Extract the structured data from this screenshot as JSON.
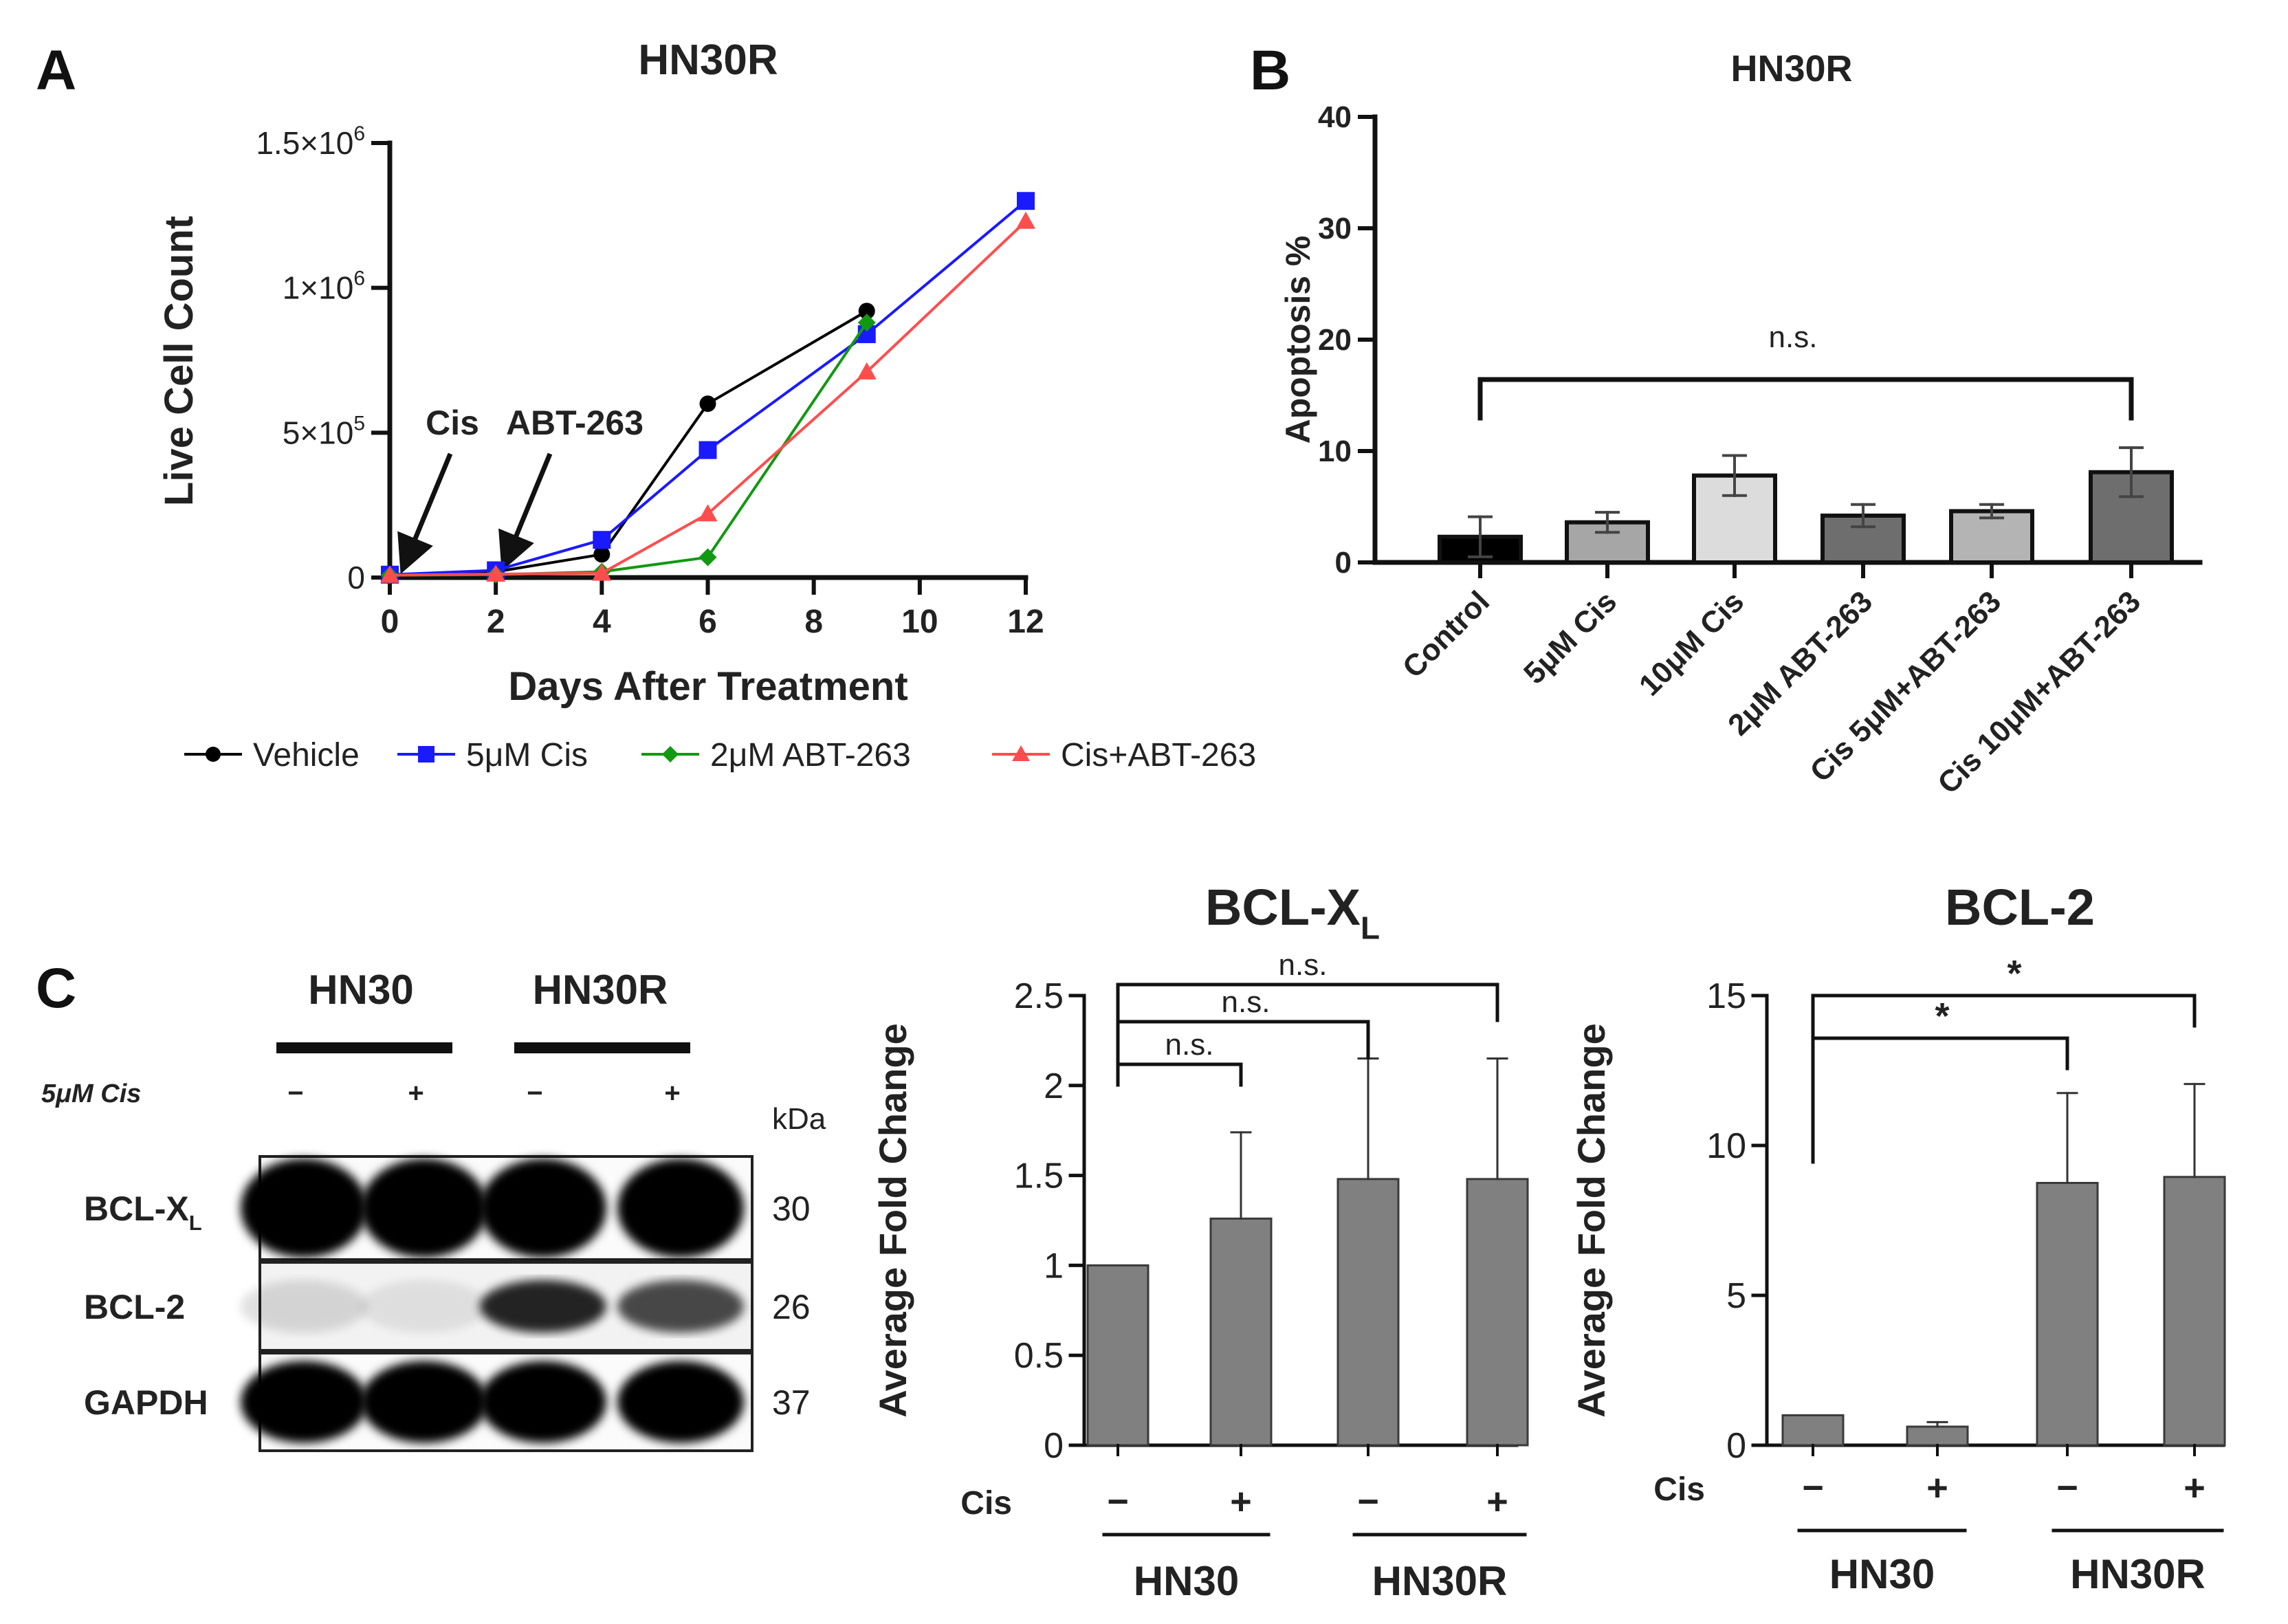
{
  "panel_letters": [
    "A",
    "B",
    "C"
  ],
  "panelA": {
    "title": "HN30R",
    "ylabel": "Live Cell Count",
    "xlabel": "Days After Treatment",
    "ytick_labels": [
      "0",
      "5×10",
      "1×10",
      "1.5×10"
    ],
    "ytick_exponents": [
      "",
      "5",
      "6",
      "6"
    ],
    "xtick_labels": [
      "0",
      "2",
      "4",
      "6",
      "8",
      "10",
      "12"
    ],
    "annotations": [
      "Cis",
      "ABT-263"
    ],
    "legend": [
      "Vehicle",
      "5μM Cis",
      "2μM ABT-263",
      "Cis+ABT-263"
    ],
    "colors": [
      "#000000",
      "#1a1aff",
      "#119911",
      "#ff4d4d"
    ]
  },
  "panelB": {
    "title": "HN30R",
    "ylabel": "Apoptosis %",
    "ytick_labels": [
      "0",
      "10",
      "20",
      "30",
      "40"
    ],
    "categories": [
      "Control",
      "5μM Cis",
      "10μM Cis",
      "2μM ABT-263",
      "Cis 5μM+ABT-263",
      "Cis 10μM+ABT-263"
    ],
    "significance": "n.s.",
    "bar_colors": [
      "#000000",
      "#a6a6a6",
      "#dcdcdc",
      "#6e6e6e",
      "#b4b4b4",
      "#6e6e6e"
    ]
  },
  "panelC": {
    "blot": {
      "groups": [
        "HN30",
        "HN30R"
      ],
      "treatment_label": "5μM Cis",
      "lane_signs": [
        "−",
        "+",
        "−",
        "+"
      ],
      "kda_label": "kDa",
      "proteins": [
        {
          "name": "BCL-X",
          "sub": "L",
          "kda": "30"
        },
        {
          "name": "BCL-2",
          "sub": "",
          "kda": "26"
        },
        {
          "name": "GAPDH",
          "sub": "",
          "kda": "37"
        }
      ]
    },
    "bclxl": {
      "title": "BCL-X",
      "title_sub": "L",
      "ylabel": "Average Fold Change",
      "ytick_labels": [
        "0",
        "0.5",
        "1",
        "1.5",
        "2",
        "2.5"
      ],
      "sig": [
        "n.s.",
        "n.s.",
        "n.s."
      ],
      "treatment_label": "Cis",
      "signs": [
        "−",
        "+",
        "−",
        "+"
      ],
      "groups": [
        "HN30",
        "HN30R"
      ]
    },
    "bcl2": {
      "title": "BCL-2",
      "ylabel": "Average Fold Change",
      "ytick_labels": [
        "0",
        "5",
        "10",
        "15"
      ],
      "sig": [
        "*",
        "*"
      ],
      "treatment_label": "Cis",
      "signs": [
        "−",
        "+",
        "−",
        "+"
      ],
      "groups": [
        "HN30",
        "HN30R"
      ]
    }
  },
  "chart_data": [
    {
      "type": "line",
      "title": "HN30R",
      "xlabel": "Days After Treatment",
      "ylabel": "Live Cell Count",
      "x": [
        0,
        2,
        4,
        6,
        9,
        12
      ],
      "xlim": [
        0,
        12
      ],
      "ylim": [
        0,
        1500000
      ],
      "series": [
        {
          "name": "Vehicle",
          "values": [
            10000,
            20000,
            80000,
            600000,
            920000,
            null
          ]
        },
        {
          "name": "5μM Cis",
          "values": [
            10000,
            25000,
            130000,
            440000,
            840000,
            1300000
          ]
        },
        {
          "name": "2μM ABT-263",
          "values": [
            8000,
            10000,
            20000,
            70000,
            880000,
            null
          ]
        },
        {
          "name": "Cis+ABT-263",
          "values": [
            8000,
            12000,
            15000,
            220000,
            710000,
            1230000
          ]
        }
      ],
      "grid": false,
      "legend": "bottom"
    },
    {
      "type": "bar",
      "title": "HN30R",
      "ylabel": "Apoptosis %",
      "categories": [
        "Control",
        "5μM Cis",
        "10μM Cis",
        "2μM ABT-263",
        "Cis 5μM+ABT-263",
        "Cis 10μM+ABT-263"
      ],
      "values": [
        2.3,
        3.6,
        7.8,
        4.2,
        4.6,
        8.1
      ],
      "errors": [
        1.8,
        0.9,
        1.8,
        1.0,
        0.6,
        2.2
      ],
      "ylim": [
        0,
        40
      ],
      "annotations": [
        "n.s."
      ]
    },
    {
      "type": "bar",
      "title": "BCL-XL",
      "ylabel": "Average Fold Change",
      "categories": [
        "HN30 −",
        "HN30 +",
        "HN30R −",
        "HN30R +"
      ],
      "values": [
        1.0,
        1.26,
        1.48,
        1.48
      ],
      "errors": [
        0,
        0.48,
        0.67,
        0.67
      ],
      "ylim": [
        0,
        2.5
      ],
      "annotations": [
        "n.s.",
        "n.s.",
        "n.s."
      ]
    },
    {
      "type": "bar",
      "title": "BCL-2",
      "ylabel": "Average Fold Change",
      "categories": [
        "HN30 −",
        "HN30 +",
        "HN30R −",
        "HN30R +"
      ],
      "values": [
        1.0,
        0.62,
        8.75,
        8.95
      ],
      "errors": [
        0,
        0.15,
        3.0,
        3.1
      ],
      "ylim": [
        0,
        15
      ],
      "annotations": [
        "*",
        "*"
      ]
    }
  ]
}
